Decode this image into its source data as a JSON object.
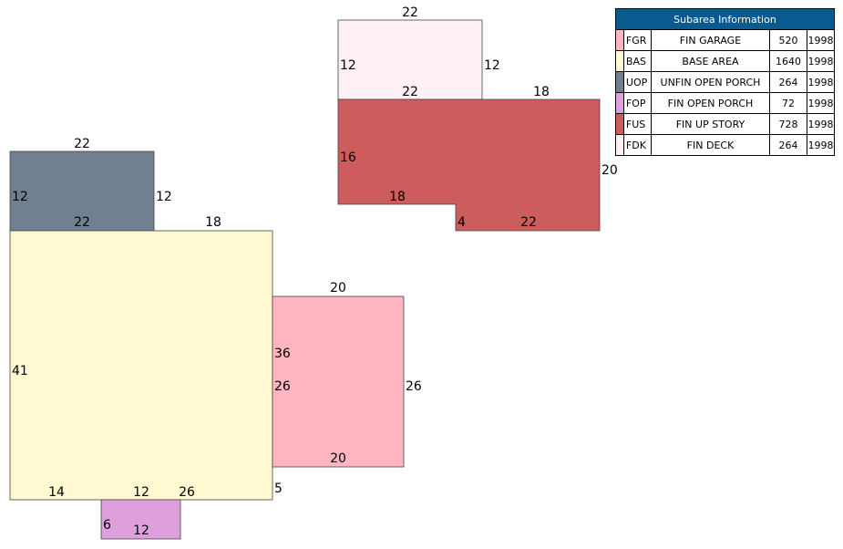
{
  "legend": {
    "title": "Subarea Information",
    "rows": [
      {
        "code": "FGR",
        "desc": "FIN GARAGE",
        "area": "520",
        "year": "1998",
        "color": "#ffb6c1"
      },
      {
        "code": "BAS",
        "desc": "BASE AREA",
        "area": "1640",
        "year": "1998",
        "color": "#fff8d0"
      },
      {
        "code": "UOP",
        "desc": "UNFIN OPEN PORCH",
        "area": "264",
        "year": "1998",
        "color": "#708090"
      },
      {
        "code": "FOP",
        "desc": "FIN OPEN PORCH",
        "area": "72",
        "year": "1998",
        "color": "#dda0dd"
      },
      {
        "code": "FUS",
        "desc": "FIN UP STORY",
        "area": "728",
        "year": "1998",
        "color": "#cd5c5c"
      },
      {
        "code": "FDK",
        "desc": "FIN DECK",
        "area": "264",
        "year": "1998",
        "color": "#fff0f5"
      }
    ]
  },
  "labels": {
    "fdk_top": "22",
    "fdk_left": "12",
    "fdk_right": "12",
    "fus_top_left": "22",
    "fus_top_right": "18",
    "fus_left": "16",
    "fus_right": "20",
    "fus_step": "18",
    "fus_step_v": "4",
    "fus_bottom": "22",
    "uop_top": "22",
    "uop_left": "12",
    "uop_right": "12",
    "bas_top_left": "22",
    "bas_top_right": "18",
    "bas_left": "41",
    "bas_right": "36",
    "bas_bottom_left": "14",
    "bas_bottom_mid": "12",
    "bas_bottom_right": "26",
    "bas_corner": "5",
    "fgr_top": "20",
    "fgr_left": "26",
    "fgr_right": "26",
    "fgr_bottom": "20",
    "fop_left": "6",
    "fop_bottom": "12"
  }
}
